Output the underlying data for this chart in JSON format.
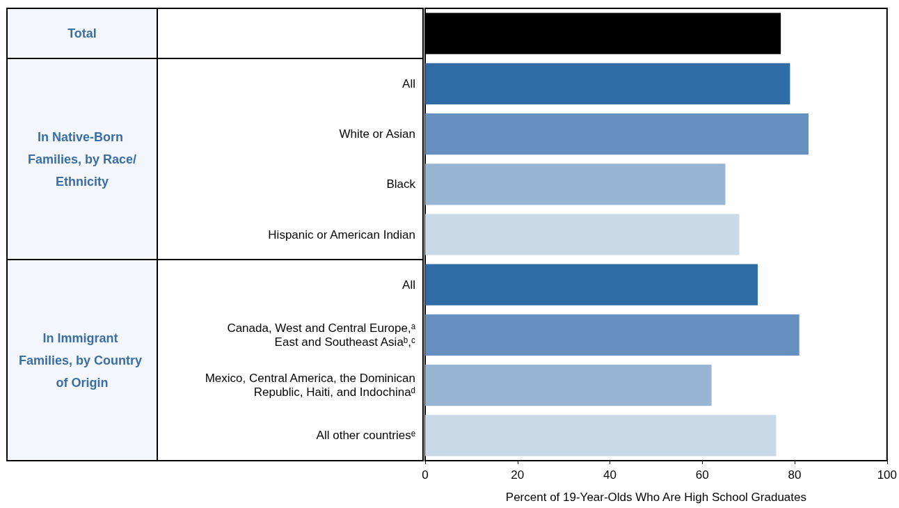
{
  "chart_data": {
    "type": "bar",
    "orientation": "horizontal",
    "xlabel": "Percent of 19-Year-Olds Who Are High School Graduates",
    "categories": [
      null,
      "All",
      "White or Asian",
      "Black",
      "Hispanic or American Indian",
      "All",
      "Canada, West and Central Europe,ᵃ East and Southeast Asiaᵇ,ᶜ",
      "Mexico, Central America, the Dominican Republic, Haiti, and Indochinaᵈ",
      "All other countriesᵉ"
    ],
    "values": [
      77,
      79,
      83,
      65,
      68,
      72,
      81,
      62,
      76
    ],
    "colors": [
      "#000000",
      "#2f6ca5",
      "#6590bf",
      "#98b5d3",
      "#c9d9e8",
      "#2f6ca5",
      "#6590bf",
      "#98b5d3",
      "#c9d9e8"
    ],
    "xlim": [
      0,
      100
    ],
    "xticks": [
      0,
      20,
      40,
      60,
      80,
      100
    ],
    "grid": false,
    "annotations": [
      "Total",
      "In Native-Born Families, by Race/Ethnicity",
      "In Immigrant Families, by Country of Origin"
    ]
  }
}
